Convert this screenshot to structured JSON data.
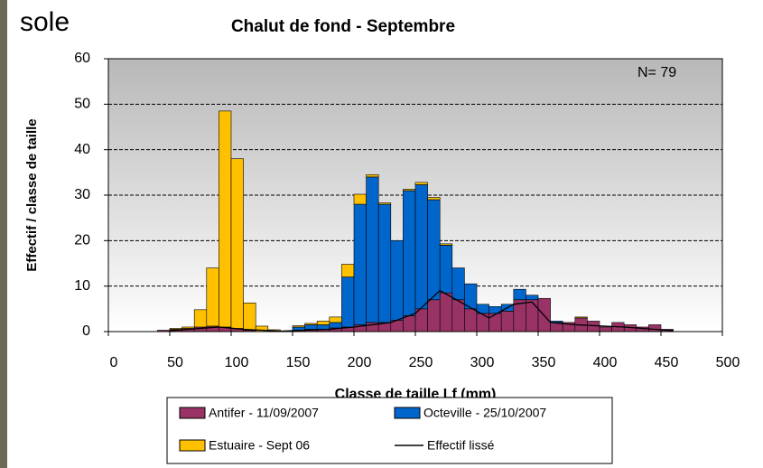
{
  "label": "sole",
  "chart_data": {
    "type": "histogram",
    "title": "Chalut de fond - Septembre",
    "annotation": "N= 79",
    "x_label": "Classe de taille Lf (mm)",
    "y_label": "Effectif / classe de taille",
    "bins": [
      40,
      50,
      60,
      70,
      80,
      90,
      100,
      110,
      120,
      130,
      140,
      150,
      160,
      170,
      180,
      190,
      200,
      210,
      220,
      230,
      240,
      250,
      260,
      270,
      280,
      290,
      300,
      310,
      320,
      330,
      340,
      350,
      360,
      370,
      380,
      390,
      400,
      410,
      420,
      430,
      440,
      450,
      460
    ],
    "series": [
      {
        "name": "Antifer - 11/09/2007",
        "color": "#993366",
        "values": [
          0.3,
          0.5,
          0.7,
          1,
          1.2,
          1,
          0.7,
          0.3,
          0,
          0,
          0,
          0.3,
          0.5,
          0.5,
          0.8,
          1,
          1.5,
          2,
          2,
          2.5,
          3.5,
          5,
          7,
          8.5,
          7,
          5,
          4,
          4,
          4.5,
          7,
          7,
          7.3,
          2,
          2,
          3,
          2.3,
          1,
          2,
          1.5,
          1,
          1.5,
          0.5
        ]
      },
      {
        "name": "Octeville - 25/10/2007",
        "color": "#0066cc",
        "values": [
          0,
          0,
          0,
          0,
          0,
          0,
          0,
          0,
          0,
          0,
          0,
          0.7,
          1,
          1,
          1.2,
          11,
          26.5,
          32,
          26,
          17.5,
          27.5,
          27.3,
          22,
          10.5,
          7,
          5.5,
          2,
          1.5,
          1.5,
          2.3,
          1,
          0,
          0.3,
          0,
          0,
          0,
          0,
          0,
          0,
          0,
          0,
          0
        ]
      },
      {
        "name": "Estuaire - Sept 06",
        "color": "#ffc000",
        "values": [
          0,
          0.2,
          0.3,
          3.8,
          12.8,
          47.5,
          37.3,
          6,
          1.2,
          0.4,
          0,
          0.3,
          0.3,
          0.8,
          1.2,
          2.8,
          2.2,
          0.5,
          0.3,
          0,
          0.3,
          0.5,
          0.5,
          0.3,
          0,
          0,
          0,
          0,
          0,
          0,
          0,
          0,
          0,
          0,
          0.2,
          0,
          0,
          0,
          0,
          0,
          0,
          0
        ]
      }
    ],
    "smooth": {
      "name": "Effectif lissé",
      "color": "#000000",
      "x": [
        50,
        70,
        90,
        110,
        140,
        180,
        200,
        230,
        250,
        270,
        290,
        310,
        330,
        345,
        360,
        380,
        420,
        460
      ],
      "values": [
        0.2,
        0.6,
        1,
        0.5,
        0.1,
        0.5,
        1,
        2,
        4,
        9,
        6,
        3,
        6,
        6.5,
        2,
        1.5,
        1,
        0.2
      ]
    },
    "xlim": [
      0,
      500
    ],
    "xticks": [
      0,
      50,
      100,
      150,
      200,
      250,
      300,
      350,
      400,
      450,
      500
    ],
    "ylim": [
      0,
      60
    ],
    "yticks": [
      0,
      10,
      20,
      30,
      40,
      50,
      60
    ],
    "grid": true
  }
}
